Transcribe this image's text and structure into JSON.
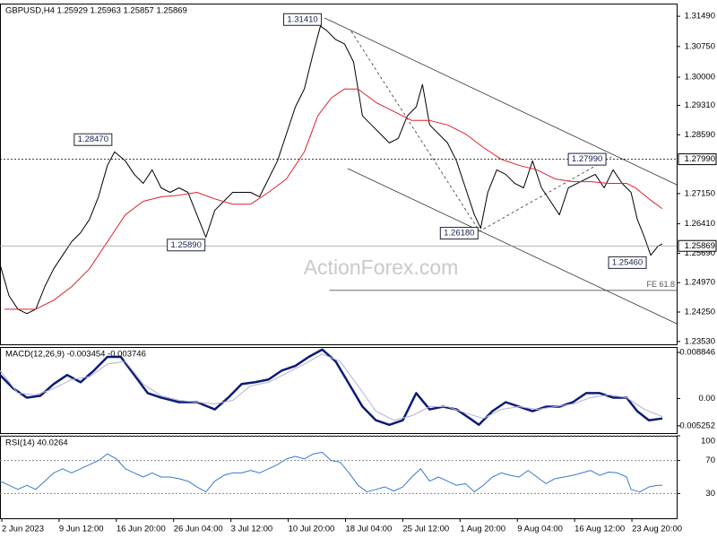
{
  "chart_data": [
    {
      "type": "line",
      "title": "GBPUSD,H4  1.25929 1.25963 1.25857 1.25869",
      "watermark": "ActionForex.com",
      "xlim": [
        0,
        378
      ],
      "ylim": [
        1.2346,
        1.318
      ],
      "grid": false,
      "yticks": [
        {
          "value": 1.3149,
          "label": "1.31490"
        },
        {
          "value": 1.3075,
          "label": "1.30750"
        },
        {
          "value": 1.3,
          "label": "1.30000"
        },
        {
          "value": 1.2931,
          "label": "1.29310"
        },
        {
          "value": 1.2859,
          "label": "1.28590"
        },
        {
          "value": 1.2715,
          "label": "1.27150"
        },
        {
          "value": 1.2641,
          "label": "1.26410"
        },
        {
          "value": 1.2569,
          "label": "1.25690"
        },
        {
          "value": 1.2497,
          "label": "1.24970"
        },
        {
          "value": 1.2425,
          "label": "1.24250"
        },
        {
          "value": 1.2353,
          "label": "1.23530"
        }
      ],
      "series": [
        {
          "color": "#000000",
          "width": 1,
          "x": [
            0,
            5,
            10,
            15,
            20,
            25,
            30,
            35,
            40,
            45,
            50,
            55,
            60,
            64,
            70,
            75,
            80,
            85,
            90,
            95,
            100,
            105,
            110,
            115,
            120,
            125,
            130,
            135,
            140,
            145,
            150,
            155,
            160,
            165,
            170,
            175,
            179,
            182.5,
            187.5,
            192.5,
            197.5,
            200,
            202.5,
            207.5,
            212.5,
            217.5,
            222.5,
            227.5,
            232.5,
            236,
            240,
            245,
            250,
            255,
            260,
            265,
            268.5,
            272.5,
            277.5,
            282.5,
            287.5,
            292.5,
            297.5,
            302.5,
            307.5,
            312.5,
            317.5,
            322.5,
            327.5,
            332.5,
            337.5,
            342.5,
            347.5,
            352.5,
            356,
            360,
            363.5,
            367.5,
            370
          ],
          "values": [
            1.2542,
            1.2465,
            1.2432,
            1.2421,
            1.2432,
            1.2487,
            1.2531,
            1.2564,
            1.2597,
            1.2619,
            1.2652,
            1.2707,
            1.2784,
            1.2817,
            1.2795,
            1.2762,
            1.274,
            1.2773,
            1.2729,
            1.2718,
            1.2729,
            1.2718,
            1.2663,
            1.2608,
            1.2674,
            1.2696,
            1.2718,
            1.2718,
            1.2718,
            1.2707,
            1.2751,
            1.2795,
            1.2861,
            1.2927,
            1.2971,
            1.3059,
            1.3125,
            1.3114,
            1.3092,
            1.3081,
            1.3037,
            1.2971,
            1.2905,
            1.2883,
            1.2861,
            1.2839,
            1.285,
            1.2905,
            1.2927,
            1.2982,
            1.2883,
            1.2861,
            1.2839,
            1.2795,
            1.2729,
            1.2663,
            1.263,
            1.2718,
            1.2773,
            1.2762,
            1.274,
            1.2729,
            1.2795,
            1.2729,
            1.2696,
            1.2663,
            1.2729,
            1.274,
            1.2751,
            1.2762,
            1.2729,
            1.2773,
            1.274,
            1.2718,
            1.2652,
            1.2608,
            1.2564,
            1.2586,
            1.2592
          ]
        },
        {
          "color": "#e0202a",
          "width": 1,
          "x": [
            2.5,
            20,
            30,
            40,
            50,
            60,
            70,
            80,
            90,
            100,
            110,
            120,
            130,
            140,
            150,
            160,
            170,
            177.5,
            185,
            192.5,
            200,
            210,
            220,
            230,
            240,
            250,
            260,
            270,
            280,
            290,
            300,
            310,
            320,
            330,
            340,
            350,
            355,
            362.5,
            370
          ],
          "values": [
            1.2432,
            1.2432,
            1.2454,
            1.2487,
            1.2531,
            1.2597,
            1.2663,
            1.2696,
            1.2707,
            1.2711,
            1.2718,
            1.2702,
            1.2689,
            1.2689,
            1.2718,
            1.2751,
            1.2817,
            1.2905,
            1.2949,
            1.2971,
            1.2971,
            1.2938,
            1.2916,
            1.2894,
            1.2894,
            1.2883,
            1.2861,
            1.2828,
            1.2799,
            1.2784,
            1.2773,
            1.2751,
            1.2744,
            1.2744,
            1.274,
            1.274,
            1.2729,
            1.2702,
            1.2678
          ]
        }
      ],
      "hlines": [
        {
          "value": 1.2799,
          "label": "1.27990",
          "style": "dotted"
        },
        {
          "value": 1.25869,
          "label": "1.25869",
          "style": "solid"
        }
      ],
      "annotations": [
        {
          "x": 181,
          "value": 1.3141,
          "label": "1.31410"
        },
        {
          "x": 64,
          "value": 1.2847,
          "label": "1.28470"
        },
        {
          "x": 116,
          "value": 1.2589,
          "label": "1.25890"
        },
        {
          "x": 268.5,
          "value": 1.2618,
          "label": "1.26180"
        },
        {
          "x": 340,
          "value": 1.2799,
          "label": "1.27990"
        },
        {
          "x": 362.5,
          "value": 1.2546,
          "label": "1.25460"
        }
      ],
      "levels": [
        {
          "x": 184,
          "value": 1.2478,
          "label": "FE 61.8"
        }
      ]
    },
    {
      "type": "line",
      "title": "MACD(12,26,9) -0.003454 -0.003746",
      "xlim": [
        0,
        378
      ],
      "ylim": [
        -0.00664,
        0.00989
      ],
      "grid": false,
      "yticks": [
        0.008846,
        {
          "value": 0,
          "label": "0.00"
        },
        -0.005252
      ],
      "series": [
        {
          "color": "#0c1a78",
          "width": 2.5,
          "x": [
            0,
            7.5,
            15,
            22.5,
            30,
            37.5,
            45,
            52.5,
            60,
            67.5,
            75,
            82.5,
            90,
            100,
            110,
            120,
            127.5,
            135,
            142.5,
            150,
            157.5,
            165,
            172.5,
            180,
            187.5,
            195,
            202.5,
            210,
            217.5,
            225,
            232.5,
            240,
            247.5,
            255,
            262.5,
            267.5,
            275,
            282.5,
            290,
            297.5,
            305,
            312.5,
            320,
            327.5,
            335,
            342.5,
            350,
            356,
            362.5,
            370
          ],
          "values": [
            0.00452,
            0.00191,
            0.00017,
            0.00052,
            0.00278,
            0.00452,
            0.00313,
            0.00539,
            0.008,
            0.008,
            0.00452,
            0.00104,
            0.00017,
            -0.0007,
            -0.0007,
            -0.00209,
            0.00017,
            0.00278,
            0.00313,
            0.00365,
            0.00539,
            0.00626,
            0.008,
            0.0094,
            0.00713,
            0.00278,
            -0.00157,
            -0.00418,
            -0.00505,
            -0.00418,
            0.00104,
            -0.00209,
            -0.00157,
            -0.00209,
            -0.00383,
            -0.00505,
            -0.00244,
            -0.0007,
            -0.00157,
            -0.00244,
            -0.00157,
            -0.00157,
            -0.0007,
            0.00104,
            0.00104,
            0.00017,
            0.00017,
            -0.00244,
            -0.00418,
            -0.00383
          ]
        },
        {
          "color": "#b4aed2",
          "width": 1,
          "x": [
            0,
            10,
            20,
            30,
            40,
            50,
            60,
            70,
            80,
            90,
            100,
            110,
            120,
            130,
            140,
            150,
            160,
            170,
            180,
            190,
            200,
            210,
            220,
            230,
            240,
            250,
            260,
            270,
            280,
            290,
            300,
            310,
            320,
            330,
            340,
            350,
            360,
            370
          ],
          "values": [
            0.00539,
            0.00104,
            0.0007,
            0.00191,
            0.00365,
            0.00418,
            0.00661,
            0.00713,
            0.00278,
            0.00052,
            -0.00035,
            -0.0007,
            -0.00104,
            -0.00035,
            0.00244,
            0.00313,
            0.00487,
            0.00661,
            0.00853,
            0.00713,
            0.00244,
            -0.00244,
            -0.00418,
            -0.00331,
            -0.00157,
            -0.00157,
            -0.00278,
            -0.00383,
            -0.00209,
            -0.00157,
            -0.00209,
            -0.00157,
            -0.00104,
            0.00017,
            0.0007,
            0.00017,
            -0.00209,
            -0.00348
          ]
        }
      ]
    },
    {
      "type": "line",
      "title": "RSI(14) 40.0264",
      "xlim": [
        0,
        378
      ],
      "ylim": [
        0,
        100
      ],
      "grid": true,
      "yticks": [
        100,
        70,
        30
      ],
      "xticks": [
        {
          "value": 1,
          "label": "2 Jun 2023"
        },
        {
          "value": 33,
          "label": "9 Jun 12:00"
        },
        {
          "value": 65,
          "label": "16 Jun 20:00"
        },
        {
          "value": 97,
          "label": "26 Jun 04:00"
        },
        {
          "value": 129,
          "label": "3 Jul 12:00"
        },
        {
          "value": 161,
          "label": "10 Jul 20:00"
        },
        {
          "value": 193,
          "label": "18 Jul 04:00"
        },
        {
          "value": 225,
          "label": "25 Jul 12:00"
        },
        {
          "value": 257,
          "label": "1 Aug 20:00"
        },
        {
          "value": 289,
          "label": "9 Aug 04:00"
        },
        {
          "value": 321,
          "label": "16 Aug 12:00"
        },
        {
          "value": 353,
          "label": "23 Aug 20:00"
        }
      ],
      "series": [
        {
          "color": "#3a78d0",
          "width": 1,
          "x": [
            0,
            5,
            10,
            15,
            20,
            25,
            30,
            35,
            40,
            45,
            50,
            55,
            60,
            65,
            70,
            75,
            80,
            85,
            90,
            95,
            100,
            105,
            110,
            115,
            120,
            125,
            130,
            135,
            140,
            145,
            150,
            155,
            160,
            165,
            170,
            175,
            180,
            185,
            190,
            195,
            200,
            205,
            210,
            215,
            220,
            225,
            230,
            235,
            240,
            245,
            250,
            255,
            260,
            265,
            270,
            275,
            280,
            285,
            290,
            295,
            300,
            305,
            310,
            315,
            320,
            325,
            330,
            335,
            340,
            345,
            350,
            352.5,
            357.5,
            362.5,
            367.5,
            370
          ],
          "values": [
            45,
            40,
            35,
            40,
            35,
            45,
            55,
            60,
            55,
            60,
            65,
            70,
            78,
            72,
            60,
            55,
            50,
            55,
            50,
            50,
            48,
            45,
            38,
            32,
            45,
            52,
            55,
            55,
            58,
            55,
            60,
            65,
            72,
            75,
            72,
            78,
            80,
            70,
            68,
            55,
            40,
            32,
            35,
            38,
            33,
            38,
            50,
            60,
            45,
            50,
            45,
            40,
            42,
            32,
            40,
            50,
            55,
            52,
            50,
            58,
            50,
            42,
            48,
            50,
            52,
            55,
            58,
            52,
            56,
            55,
            50,
            35,
            32,
            38,
            40,
            40
          ]
        }
      ]
    }
  ]
}
